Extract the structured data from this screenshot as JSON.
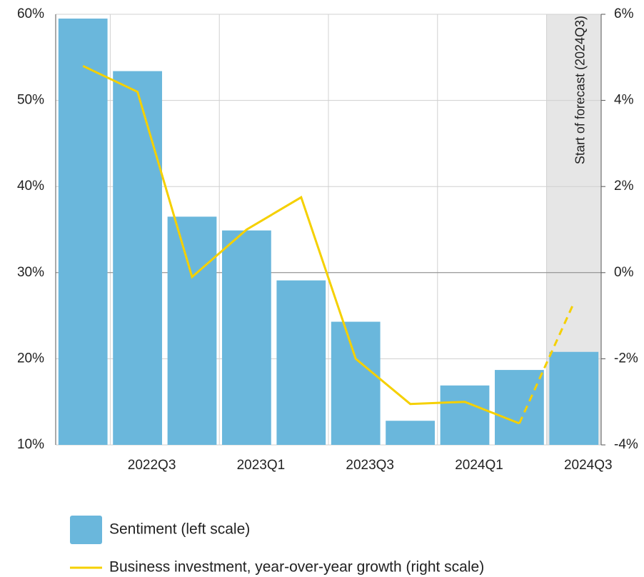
{
  "chart_data": {
    "type": "bar",
    "categories": [
      null,
      "2022Q3",
      null,
      "2023Q1",
      null,
      "2023Q3",
      null,
      "2024Q1",
      null,
      "2024Q3"
    ],
    "series": [
      {
        "name": "Sentiment (left scale)",
        "type": "bar",
        "color": "#6ab7dc",
        "values": [
          59.5,
          53.4,
          36.5,
          34.9,
          29.1,
          24.3,
          12.8,
          16.9,
          18.7,
          20.8
        ]
      },
      {
        "name": "Business investment, year-over-year growth (right scale)",
        "type": "line",
        "axis": "y2",
        "color": "#f5d000",
        "values": [
          4.8,
          4.2,
          -0.1,
          1.0,
          1.75,
          -2.0,
          -3.05,
          -3.0,
          -3.5,
          -0.7
        ]
      }
    ],
    "ylim": [
      10,
      60
    ],
    "yticks": [
      {
        "value": 10,
        "label": "10%"
      },
      {
        "value": 20,
        "label": "20%"
      },
      {
        "value": 30,
        "label": "30%"
      },
      {
        "value": 40,
        "label": "40%"
      },
      {
        "value": 50,
        "label": "50%"
      },
      {
        "value": 60,
        "label": "60%"
      }
    ],
    "y2lim": [
      -4,
      6
    ],
    "y2ticks": [
      {
        "value": -4,
        "label": "-4%"
      },
      {
        "value": -2,
        "label": "-2%"
      },
      {
        "value": 0,
        "label": "0%"
      },
      {
        "value": 2,
        "label": "2%"
      },
      {
        "value": 4,
        "label": "4%"
      },
      {
        "value": 6,
        "label": "6%"
      }
    ],
    "grid": true,
    "forecast": {
      "label": "Start of forecast (2024Q3)",
      "start_index": 9,
      "color": "#e6e6e6"
    },
    "legend_position": "bottom"
  }
}
